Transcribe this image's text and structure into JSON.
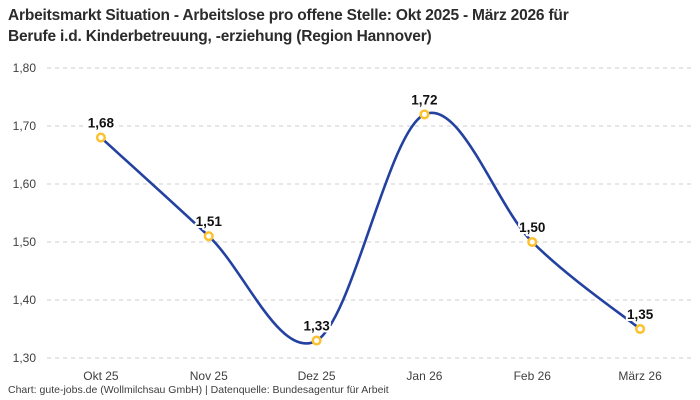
{
  "header": {
    "title_line1": "Arbeitsmarkt Situation - Arbeitslose pro offene Stelle: Okt 2025 - März 2026 für",
    "title_line2": "Berufe i.d. Kinderbetreuung, -erziehung (Region Hannover)"
  },
  "footer": {
    "caption": "Chart: gute-jobs.de (Wollmilchsau GmbH) | Datenquelle: Bundesagentur für Arbeit"
  },
  "chart_data": {
    "type": "line",
    "title": "Arbeitsmarkt Situation - Arbeitslose pro offene Stelle: Okt 2025 - März 2026 für Berufe i.d. Kinderbetreuung, -erziehung (Region Hannover)",
    "categories": [
      "Okt 25",
      "Nov 25",
      "Dez 25",
      "Jan 26",
      "Feb 26",
      "März 26"
    ],
    "values": [
      1.68,
      1.51,
      1.33,
      1.72,
      1.5,
      1.35
    ],
    "value_labels": [
      "1,68",
      "1,51",
      "1,33",
      "1,72",
      "1,50",
      "1,35"
    ],
    "y_ticks": [
      {
        "value": 1.3,
        "label": "1,30"
      },
      {
        "value": 1.4,
        "label": "1,40"
      },
      {
        "value": 1.5,
        "label": "1,50"
      },
      {
        "value": 1.6,
        "label": "1,60"
      },
      {
        "value": 1.7,
        "label": "1,70"
      },
      {
        "value": 1.8,
        "label": "1,80"
      }
    ],
    "ylim": [
      1.3,
      1.8
    ],
    "xlabel": "",
    "ylabel": "",
    "grid": "horizontal-dashed",
    "legend": "none",
    "interpolation": "smooth",
    "colors": {
      "line": "#2341a0",
      "marker_ring": "#fcc22e",
      "marker_fill": "#ffffff",
      "grid": "#cccccc",
      "value_label": "#111111",
      "tick_label": "#404040",
      "title": "#2b2b2b"
    }
  }
}
